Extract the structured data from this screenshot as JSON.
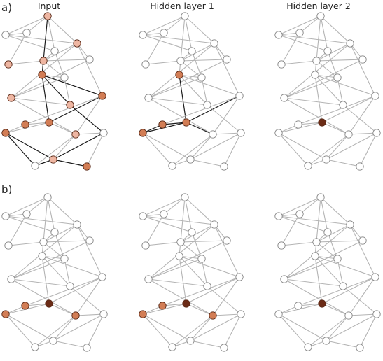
{
  "labels": {
    "row_a": "a)",
    "row_b": "b)"
  },
  "columns": [
    "Input",
    "Hidden layer 1",
    "Hidden layer 2"
  ],
  "colors": {
    "center": "#6b2b16",
    "hop1": "#d27d55",
    "hop2": "#eeb6a2",
    "inactive": "#ffffff",
    "edge_gray": "#b4b4b4",
    "edge_dark": "#1a1a1a"
  },
  "graph": {
    "node_count": 21,
    "edges": [
      [
        0,
        1
      ],
      [
        0,
        2
      ],
      [
        0,
        3
      ],
      [
        0,
        6
      ],
      [
        1,
        2
      ],
      [
        1,
        4
      ],
      [
        2,
        3
      ],
      [
        2,
        6
      ],
      [
        2,
        9
      ],
      [
        4,
        5
      ],
      [
        3,
        5
      ],
      [
        3,
        8
      ],
      [
        5,
        6
      ],
      [
        5,
        7
      ],
      [
        5,
        8
      ],
      [
        6,
        7
      ],
      [
        6,
        10
      ],
      [
        6,
        11
      ],
      [
        7,
        11
      ],
      [
        8,
        9
      ],
      [
        8,
        11
      ],
      [
        8,
        12
      ],
      [
        9,
        10
      ],
      [
        9,
        12
      ],
      [
        9,
        13
      ],
      [
        10,
        13
      ],
      [
        10,
        14
      ],
      [
        10,
        15
      ],
      [
        11,
        12
      ],
      [
        11,
        15
      ],
      [
        12,
        16
      ],
      [
        13,
        14
      ],
      [
        13,
        15
      ],
      [
        13,
        17
      ],
      [
        14,
        17
      ],
      [
        15,
        16
      ],
      [
        15,
        18
      ],
      [
        15,
        19
      ],
      [
        16,
        19
      ],
      [
        16,
        20
      ],
      [
        17,
        18
      ],
      [
        17,
        19
      ],
      [
        18,
        19
      ],
      [
        19,
        20
      ]
    ]
  },
  "panels": {
    "a": [
      {
        "node_levels": [
          0,
          0,
          2,
          0,
          2,
          2,
          2,
          0,
          0,
          1,
          1,
          2,
          2,
          1,
          1,
          2,
          0,
          1,
          0,
          2,
          1
        ],
        "dark_edges": [
          [
            2,
            9
          ],
          [
            4,
            9
          ],
          [
            6,
            9
          ],
          [
            9,
            10
          ],
          [
            9,
            12
          ],
          [
            9,
            13
          ],
          [
            10,
            13
          ],
          [
            12,
            16
          ],
          [
            16,
            19
          ],
          [
            19,
            20
          ],
          [
            17,
            19
          ],
          [
            17,
            18
          ],
          [
            18,
            19
          ],
          [
            19,
            17
          ]
        ]
      },
      {
        "node_levels": [
          0,
          0,
          0,
          0,
          0,
          0,
          0,
          0,
          0,
          1,
          0,
          0,
          0,
          1,
          1,
          0,
          0,
          1,
          0,
          0,
          0
        ],
        "dark_edges": [
          [
            9,
            13
          ],
          [
            10,
            13
          ],
          [
            13,
            14
          ],
          [
            13,
            15
          ],
          [
            13,
            17
          ],
          [
            14,
            17
          ]
        ]
      },
      {
        "node_levels": [
          0,
          0,
          0,
          0,
          0,
          0,
          0,
          0,
          0,
          0,
          0,
          0,
          0,
          3,
          0,
          0,
          0,
          0,
          0,
          0,
          0
        ],
        "dark_edges": []
      }
    ],
    "b": [
      {
        "node_levels": [
          0,
          0,
          0,
          0,
          0,
          0,
          0,
          0,
          0,
          0,
          0,
          0,
          0,
          3,
          1,
          1,
          0,
          1,
          0,
          0,
          0
        ],
        "dark_edges": []
      },
      {
        "node_levels": [
          0,
          0,
          0,
          0,
          0,
          0,
          0,
          0,
          0,
          0,
          0,
          0,
          0,
          3,
          1,
          1,
          0,
          1,
          0,
          0,
          0
        ],
        "dark_edges": []
      },
      {
        "node_levels": [
          0,
          0,
          0,
          0,
          0,
          0,
          0,
          0,
          0,
          0,
          0,
          0,
          0,
          3,
          0,
          0,
          0,
          0,
          0,
          0,
          0
        ],
        "dark_edges": []
      }
    ]
  }
}
